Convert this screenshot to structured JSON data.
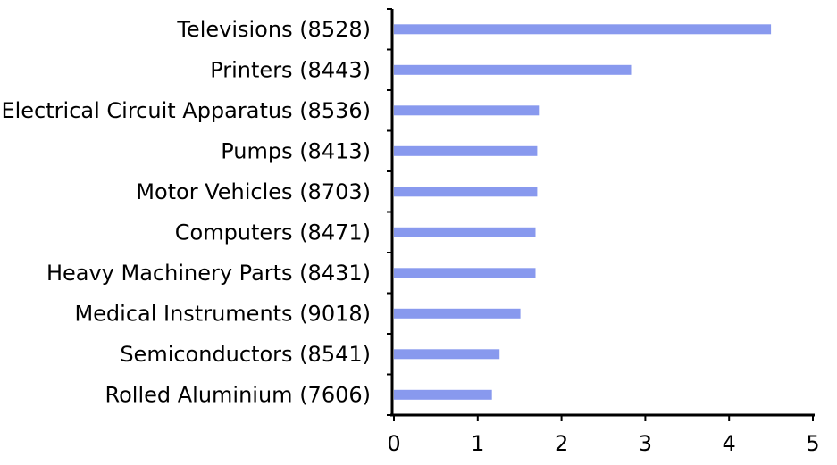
{
  "chart_data": {
    "type": "bar",
    "orientation": "horizontal",
    "categories": [
      "Televisions (8528)",
      "Printers (8443)",
      "Electrical Circuit Apparatus (8536)",
      "Pumps (8413)",
      "Motor Vehicles (8703)",
      "Computers (8471)",
      "Heavy Machinery Parts (8431)",
      "Medical Instruments (9018)",
      "Semiconductors (8541)",
      "Rolled Aluminium (7606)"
    ],
    "values": [
      4.5,
      2.83,
      1.73,
      1.71,
      1.71,
      1.69,
      1.69,
      1.51,
      1.26,
      1.17
    ],
    "x_ticks": [
      "0",
      "1",
      "2",
      "3",
      "4",
      "5"
    ],
    "xlim": [
      0,
      5
    ],
    "title": "",
    "xlabel": "",
    "ylabel": "",
    "grid": false,
    "legend": "none",
    "bar_color": "#8899EE"
  }
}
